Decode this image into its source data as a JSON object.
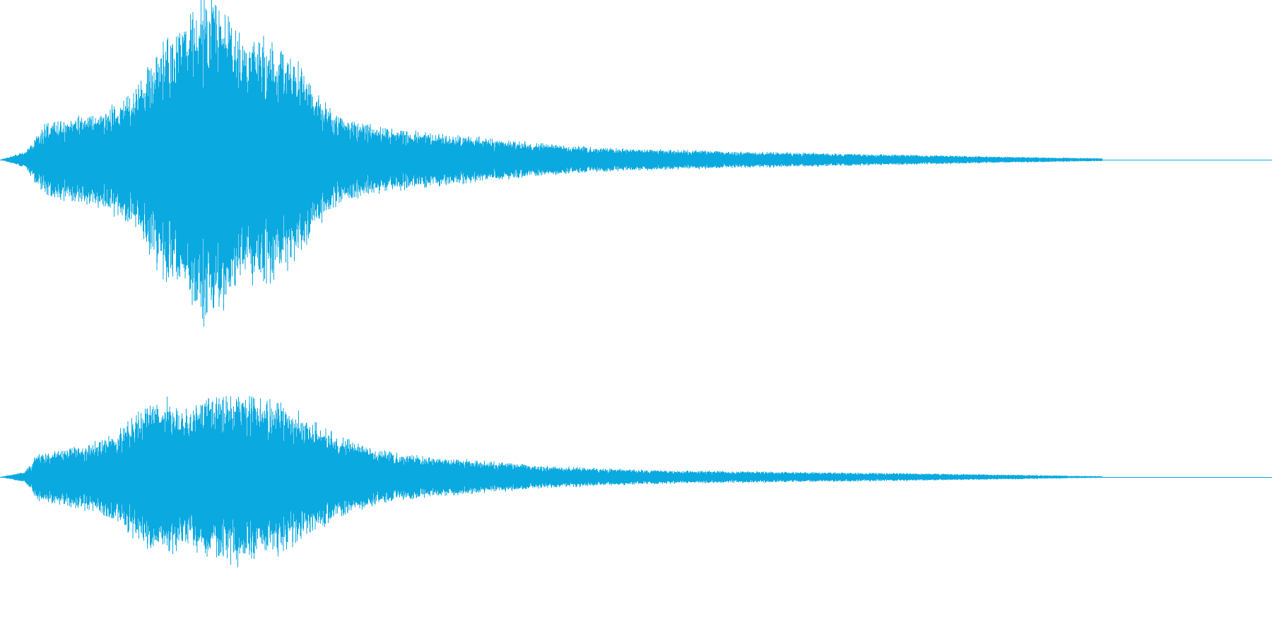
{
  "waveform": {
    "color": "#0aa9e0",
    "background": "#ffffff",
    "channels": [
      {
        "name": "channel-1",
        "envelope": [
          [
            0.0,
            0.0
          ],
          [
            0.02,
            0.05
          ],
          [
            0.035,
            0.22
          ],
          [
            0.05,
            0.25
          ],
          [
            0.07,
            0.27
          ],
          [
            0.09,
            0.33
          ],
          [
            0.11,
            0.45
          ],
          [
            0.13,
            0.75
          ],
          [
            0.145,
            0.8
          ],
          [
            0.16,
            1.0
          ],
          [
            0.175,
            0.9
          ],
          [
            0.19,
            0.72
          ],
          [
            0.21,
            0.75
          ],
          [
            0.23,
            0.62
          ],
          [
            0.25,
            0.4
          ],
          [
            0.27,
            0.24
          ],
          [
            0.3,
            0.2
          ],
          [
            0.33,
            0.17
          ],
          [
            0.37,
            0.14
          ],
          [
            0.42,
            0.1
          ],
          [
            0.47,
            0.075
          ],
          [
            0.52,
            0.06
          ],
          [
            0.58,
            0.05
          ],
          [
            0.65,
            0.04
          ],
          [
            0.72,
            0.03
          ],
          [
            0.78,
            0.02
          ],
          [
            0.84,
            0.012
          ],
          [
            0.9,
            0.004
          ],
          [
            1.0,
            0.0
          ]
        ]
      },
      {
        "name": "channel-2",
        "envelope": [
          [
            0.0,
            0.0
          ],
          [
            0.02,
            0.05
          ],
          [
            0.03,
            0.22
          ],
          [
            0.045,
            0.24
          ],
          [
            0.07,
            0.3
          ],
          [
            0.09,
            0.38
          ],
          [
            0.11,
            0.6
          ],
          [
            0.13,
            0.72
          ],
          [
            0.145,
            0.62
          ],
          [
            0.165,
            0.72
          ],
          [
            0.185,
            0.78
          ],
          [
            0.2,
            0.72
          ],
          [
            0.22,
            0.68
          ],
          [
            0.24,
            0.55
          ],
          [
            0.26,
            0.4
          ],
          [
            0.28,
            0.3
          ],
          [
            0.31,
            0.22
          ],
          [
            0.34,
            0.18
          ],
          [
            0.38,
            0.14
          ],
          [
            0.43,
            0.1
          ],
          [
            0.48,
            0.075
          ],
          [
            0.53,
            0.06
          ],
          [
            0.6,
            0.05
          ],
          [
            0.67,
            0.04
          ],
          [
            0.74,
            0.03
          ],
          [
            0.8,
            0.02
          ],
          [
            0.85,
            0.01
          ],
          [
            0.9,
            0.004
          ],
          [
            1.0,
            0.0
          ]
        ]
      }
    ]
  }
}
